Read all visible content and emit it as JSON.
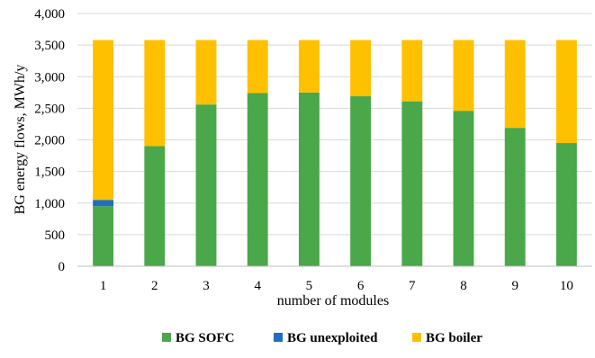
{
  "chart_data": {
    "type": "bar",
    "stacked": true,
    "title": "",
    "xlabel": "number of modules",
    "ylabel": "BG energy flows, MWh/y",
    "categories": [
      "1",
      "2",
      "3",
      "4",
      "5",
      "6",
      "7",
      "8",
      "9",
      "10"
    ],
    "ylim": [
      0,
      4000
    ],
    "yticks": [
      0,
      500,
      1000,
      1500,
      2000,
      2500,
      3000,
      3500,
      4000
    ],
    "ytick_labels": [
      "0",
      "500",
      "1,000",
      "1,500",
      "2,000",
      "2,500",
      "3,000",
      "3,500",
      "4,000"
    ],
    "grid": true,
    "legend_position": "bottom",
    "series": [
      {
        "name": "BG SOFC",
        "color": "#4aa74a",
        "values": [
          950,
          1900,
          2560,
          2740,
          2750,
          2690,
          2610,
          2460,
          2190,
          1950
        ]
      },
      {
        "name": "BG unexploited",
        "color": "#1f6fc0",
        "values": [
          100,
          0,
          0,
          0,
          0,
          0,
          0,
          0,
          0,
          0
        ]
      },
      {
        "name": "BG boiler",
        "color": "#ffc000",
        "values": [
          2530,
          1680,
          1020,
          840,
          830,
          890,
          970,
          1120,
          1390,
          1630
        ]
      }
    ]
  }
}
